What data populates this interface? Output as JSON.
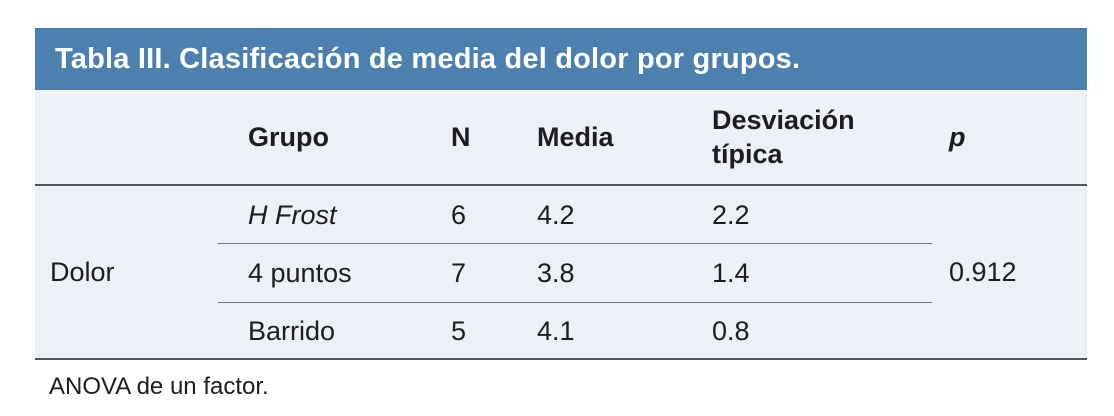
{
  "chart_data": {
    "type": "table",
    "title": "Tabla III. Clasificación de media del dolor por grupos.",
    "row_group_label": "Dolor",
    "columns": [
      "Grupo",
      "N",
      "Media",
      "Desviación típica",
      "p"
    ],
    "rows": [
      {
        "grupo": "H Frost",
        "n": "6",
        "media": "4.2",
        "desviacion_tipica": "2.2"
      },
      {
        "grupo": "4 puntos",
        "n": "7",
        "media": "3.8",
        "desviacion_tipica": "1.4"
      },
      {
        "grupo": "Barrido",
        "n": "5",
        "media": "4.1",
        "desviacion_tipica": "0.8"
      }
    ],
    "p_value": "0.912",
    "footnote": "ANOVA de un factor.",
    "layout": {
      "legend": "none",
      "grid": "horizontal-rules-only"
    }
  },
  "colors": {
    "title_bar_bg": "#4C80AF",
    "title_text": "#FFFFFF",
    "table_bg": "#EDF0F6",
    "heavy_rule": "#54545C",
    "row_rule": "#73737B",
    "body_text": "#1C1C21",
    "page_bg": "#FFFFFF"
  }
}
